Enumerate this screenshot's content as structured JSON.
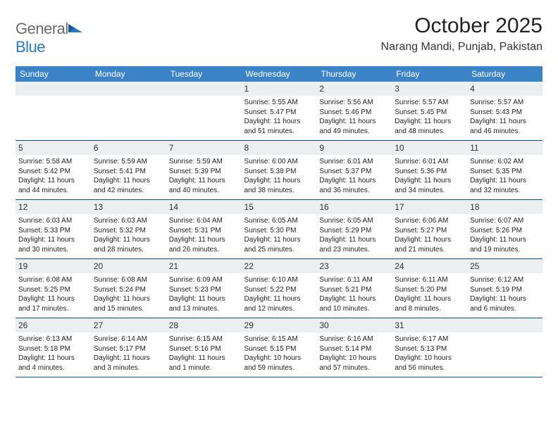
{
  "brand": {
    "part1": "General",
    "part2": "Blue"
  },
  "title": "October 2025",
  "location": "Narang Mandi, Punjab, Pakistan",
  "colors": {
    "header_bg": "#3a83c7",
    "header_text": "#ffffff",
    "daynum_bg": "#eceff0",
    "row_border": "#0f4e87",
    "logo_gray": "#6b6b6b",
    "logo_blue": "#2b78c2"
  },
  "day_headers": [
    "Sunday",
    "Monday",
    "Tuesday",
    "Wednesday",
    "Thursday",
    "Friday",
    "Saturday"
  ],
  "weeks": [
    [
      null,
      null,
      null,
      {
        "n": "1",
        "sr": "5:55 AM",
        "ss": "5:47 PM",
        "dl": "11 hours and 51 minutes."
      },
      {
        "n": "2",
        "sr": "5:56 AM",
        "ss": "5:46 PM",
        "dl": "11 hours and 49 minutes."
      },
      {
        "n": "3",
        "sr": "5:57 AM",
        "ss": "5:45 PM",
        "dl": "11 hours and 48 minutes."
      },
      {
        "n": "4",
        "sr": "5:57 AM",
        "ss": "5:43 PM",
        "dl": "11 hours and 46 minutes."
      }
    ],
    [
      {
        "n": "5",
        "sr": "5:58 AM",
        "ss": "5:42 PM",
        "dl": "11 hours and 44 minutes."
      },
      {
        "n": "6",
        "sr": "5:59 AM",
        "ss": "5:41 PM",
        "dl": "11 hours and 42 minutes."
      },
      {
        "n": "7",
        "sr": "5:59 AM",
        "ss": "5:39 PM",
        "dl": "11 hours and 40 minutes."
      },
      {
        "n": "8",
        "sr": "6:00 AM",
        "ss": "5:38 PM",
        "dl": "11 hours and 38 minutes."
      },
      {
        "n": "9",
        "sr": "6:01 AM",
        "ss": "5:37 PM",
        "dl": "11 hours and 36 minutes."
      },
      {
        "n": "10",
        "sr": "6:01 AM",
        "ss": "5:36 PM",
        "dl": "11 hours and 34 minutes."
      },
      {
        "n": "11",
        "sr": "6:02 AM",
        "ss": "5:35 PM",
        "dl": "11 hours and 32 minutes."
      }
    ],
    [
      {
        "n": "12",
        "sr": "6:03 AM",
        "ss": "5:33 PM",
        "dl": "11 hours and 30 minutes."
      },
      {
        "n": "13",
        "sr": "6:03 AM",
        "ss": "5:32 PM",
        "dl": "11 hours and 28 minutes."
      },
      {
        "n": "14",
        "sr": "6:04 AM",
        "ss": "5:31 PM",
        "dl": "11 hours and 26 minutes."
      },
      {
        "n": "15",
        "sr": "6:05 AM",
        "ss": "5:30 PM",
        "dl": "11 hours and 25 minutes."
      },
      {
        "n": "16",
        "sr": "6:05 AM",
        "ss": "5:29 PM",
        "dl": "11 hours and 23 minutes."
      },
      {
        "n": "17",
        "sr": "6:06 AM",
        "ss": "5:27 PM",
        "dl": "11 hours and 21 minutes."
      },
      {
        "n": "18",
        "sr": "6:07 AM",
        "ss": "5:26 PM",
        "dl": "11 hours and 19 minutes."
      }
    ],
    [
      {
        "n": "19",
        "sr": "6:08 AM",
        "ss": "5:25 PM",
        "dl": "11 hours and 17 minutes."
      },
      {
        "n": "20",
        "sr": "6:08 AM",
        "ss": "5:24 PM",
        "dl": "11 hours and 15 minutes."
      },
      {
        "n": "21",
        "sr": "6:09 AM",
        "ss": "5:23 PM",
        "dl": "11 hours and 13 minutes."
      },
      {
        "n": "22",
        "sr": "6:10 AM",
        "ss": "5:22 PM",
        "dl": "11 hours and 12 minutes."
      },
      {
        "n": "23",
        "sr": "6:11 AM",
        "ss": "5:21 PM",
        "dl": "11 hours and 10 minutes."
      },
      {
        "n": "24",
        "sr": "6:11 AM",
        "ss": "5:20 PM",
        "dl": "11 hours and 8 minutes."
      },
      {
        "n": "25",
        "sr": "6:12 AM",
        "ss": "5:19 PM",
        "dl": "11 hours and 6 minutes."
      }
    ],
    [
      {
        "n": "26",
        "sr": "6:13 AM",
        "ss": "5:18 PM",
        "dl": "11 hours and 4 minutes."
      },
      {
        "n": "27",
        "sr": "6:14 AM",
        "ss": "5:17 PM",
        "dl": "11 hours and 3 minutes."
      },
      {
        "n": "28",
        "sr": "6:15 AM",
        "ss": "5:16 PM",
        "dl": "11 hours and 1 minute."
      },
      {
        "n": "29",
        "sr": "6:15 AM",
        "ss": "5:15 PM",
        "dl": "10 hours and 59 minutes."
      },
      {
        "n": "30",
        "sr": "6:16 AM",
        "ss": "5:14 PM",
        "dl": "10 hours and 57 minutes."
      },
      {
        "n": "31",
        "sr": "6:17 AM",
        "ss": "5:13 PM",
        "dl": "10 hours and 56 minutes."
      },
      null
    ]
  ],
  "labels": {
    "sunrise": "Sunrise: ",
    "sunset": "Sunset: ",
    "daylight": "Daylight: "
  }
}
